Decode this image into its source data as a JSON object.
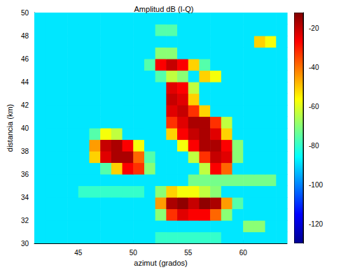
{
  "chart_data": {
    "type": "heatmap",
    "title": "Amplitud dB (I-Q)",
    "x_label": "azimut (grados)",
    "y_label": "distancia (km)",
    "xlim": [
      41,
      64
    ],
    "xticks": [
      45,
      50,
      55,
      60
    ],
    "ylim": [
      30,
      50
    ],
    "yticks": [
      30,
      32,
      34,
      36,
      38,
      40,
      42,
      44,
      46,
      48,
      50
    ],
    "x_edges": [
      41,
      42,
      43,
      44,
      45,
      46,
      47,
      48,
      49,
      50,
      51,
      52,
      53,
      54,
      55,
      56,
      57,
      58,
      59,
      60,
      61,
      62,
      63,
      64
    ],
    "y_edges": [
      30,
      31,
      32,
      33,
      34,
      35,
      36,
      37,
      38,
      39,
      40,
      41,
      42,
      43,
      44,
      45,
      46,
      47,
      48,
      49,
      50
    ],
    "cells": [
      [
        -85,
        -85,
        -85,
        -85,
        -85,
        -85,
        -85,
        -85,
        -85,
        -85,
        -85,
        -78,
        -78,
        -78,
        -78,
        -78,
        -78,
        -85,
        -85,
        -85,
        -85,
        -85,
        -85
      ],
      [
        -85,
        -85,
        -85,
        -85,
        -85,
        -85,
        -85,
        -85,
        -85,
        -85,
        -85,
        -85,
        -85,
        -85,
        -85,
        -85,
        -85,
        -85,
        -85,
        -70,
        -70,
        -85,
        -85
      ],
      [
        -85,
        -85,
        -85,
        -85,
        -85,
        -85,
        -85,
        -85,
        -85,
        -85,
        -85,
        -70,
        -40,
        -30,
        -35,
        -35,
        -45,
        -70,
        -85,
        -85,
        -85,
        -85,
        -85
      ],
      [
        -85,
        -85,
        -85,
        -85,
        -85,
        -85,
        -85,
        -85,
        -85,
        -85,
        -85,
        -50,
        -20,
        -15,
        -25,
        -15,
        -20,
        -50,
        -75,
        -85,
        -85,
        -85,
        -85
      ],
      [
        -85,
        -85,
        -85,
        -85,
        -78,
        -78,
        -78,
        -78,
        -78,
        -78,
        -85,
        -70,
        -55,
        -60,
        -60,
        -65,
        -70,
        -85,
        -85,
        -85,
        -85,
        -85,
        -85
      ],
      [
        -85,
        -85,
        -85,
        -85,
        -85,
        -85,
        -85,
        -85,
        -85,
        -85,
        -85,
        -85,
        -85,
        -85,
        -72,
        -72,
        -72,
        -72,
        -72,
        -72,
        -72,
        -72,
        -85
      ],
      [
        -85,
        -85,
        -85,
        -85,
        -85,
        -85,
        -75,
        -55,
        -35,
        -40,
        -70,
        -85,
        -85,
        -85,
        -85,
        -65,
        -35,
        -45,
        -85,
        -85,
        -85,
        -85,
        -85
      ],
      [
        -85,
        -85,
        -85,
        -85,
        -85,
        -55,
        -30,
        -20,
        -20,
        -45,
        -75,
        -85,
        -85,
        -85,
        -65,
        -40,
        -25,
        -30,
        -70,
        -85,
        -85,
        -85,
        -85
      ],
      [
        -85,
        -85,
        -85,
        -85,
        -85,
        -50,
        -25,
        -20,
        -35,
        -60,
        -85,
        -85,
        -85,
        -60,
        -35,
        -20,
        -20,
        -35,
        -70,
        -85,
        -85,
        -85,
        -85
      ],
      [
        -85,
        -85,
        -85,
        -85,
        -85,
        -75,
        -60,
        -65,
        -85,
        -85,
        -85,
        -85,
        -55,
        -35,
        -25,
        -20,
        -30,
        -55,
        -85,
        -85,
        -85,
        -85,
        -85
      ],
      [
        -85,
        -85,
        -85,
        -85,
        -85,
        -85,
        -85,
        -85,
        -85,
        -85,
        -85,
        -85,
        -40,
        -30,
        -20,
        -20,
        -40,
        -65,
        -85,
        -85,
        -85,
        -85,
        -85
      ],
      [
        -85,
        -85,
        -85,
        -85,
        -85,
        -85,
        -85,
        -85,
        -85,
        -85,
        -85,
        -85,
        -30,
        -25,
        -40,
        -55,
        -85,
        -85,
        -85,
        -85,
        -85,
        -85,
        -85
      ],
      [
        -85,
        -85,
        -85,
        -85,
        -85,
        -85,
        -85,
        -85,
        -85,
        -85,
        -85,
        -85,
        -25,
        -30,
        -55,
        -85,
        -85,
        -85,
        -85,
        -85,
        -85,
        -85,
        -85
      ],
      [
        -85,
        -85,
        -85,
        -85,
        -85,
        -85,
        -85,
        -85,
        -85,
        -85,
        -85,
        -85,
        -30,
        -35,
        -65,
        -85,
        -85,
        -85,
        -85,
        -85,
        -85,
        -85,
        -85
      ],
      [
        -85,
        -85,
        -85,
        -85,
        -85,
        -85,
        -85,
        -85,
        -85,
        -85,
        -85,
        -75,
        -65,
        -70,
        -85,
        -55,
        -60,
        -85,
        -85,
        -85,
        -85,
        -85,
        -85
      ],
      [
        -85,
        -85,
        -85,
        -85,
        -85,
        -85,
        -85,
        -85,
        -85,
        -85,
        -75,
        -35,
        -25,
        -35,
        -55,
        -75,
        -85,
        -85,
        -85,
        -85,
        -85,
        -85,
        -85
      ],
      [
        -85,
        -85,
        -85,
        -85,
        -85,
        -85,
        -85,
        -85,
        -85,
        -85,
        -85,
        -70,
        -70,
        -85,
        -85,
        -85,
        -85,
        -85,
        -85,
        -85,
        -85,
        -85,
        -85
      ],
      [
        -85,
        -85,
        -85,
        -85,
        -85,
        -85,
        -85,
        -85,
        -85,
        -85,
        -85,
        -85,
        -85,
        -85,
        -85,
        -85,
        -85,
        -85,
        -85,
        -85,
        -55,
        -60,
        -85
      ],
      [
        -85,
        -85,
        -85,
        -85,
        -85,
        -85,
        -85,
        -85,
        -85,
        -85,
        -85,
        -75,
        -75,
        -85,
        -85,
        -85,
        -85,
        -85,
        -85,
        -85,
        -85,
        -85,
        -85
      ],
      [
        -85,
        -85,
        -85,
        -85,
        -85,
        -85,
        -85,
        -85,
        -85,
        -85,
        -85,
        -85,
        -85,
        -85,
        -85,
        -85,
        -85,
        -85,
        -85,
        -85,
        -85,
        -85,
        -85
      ]
    ],
    "colorbar": {
      "range": [
        -130,
        -12
      ],
      "ticks": [
        -120,
        -100,
        -80,
        -60,
        -40,
        -20
      ]
    }
  }
}
